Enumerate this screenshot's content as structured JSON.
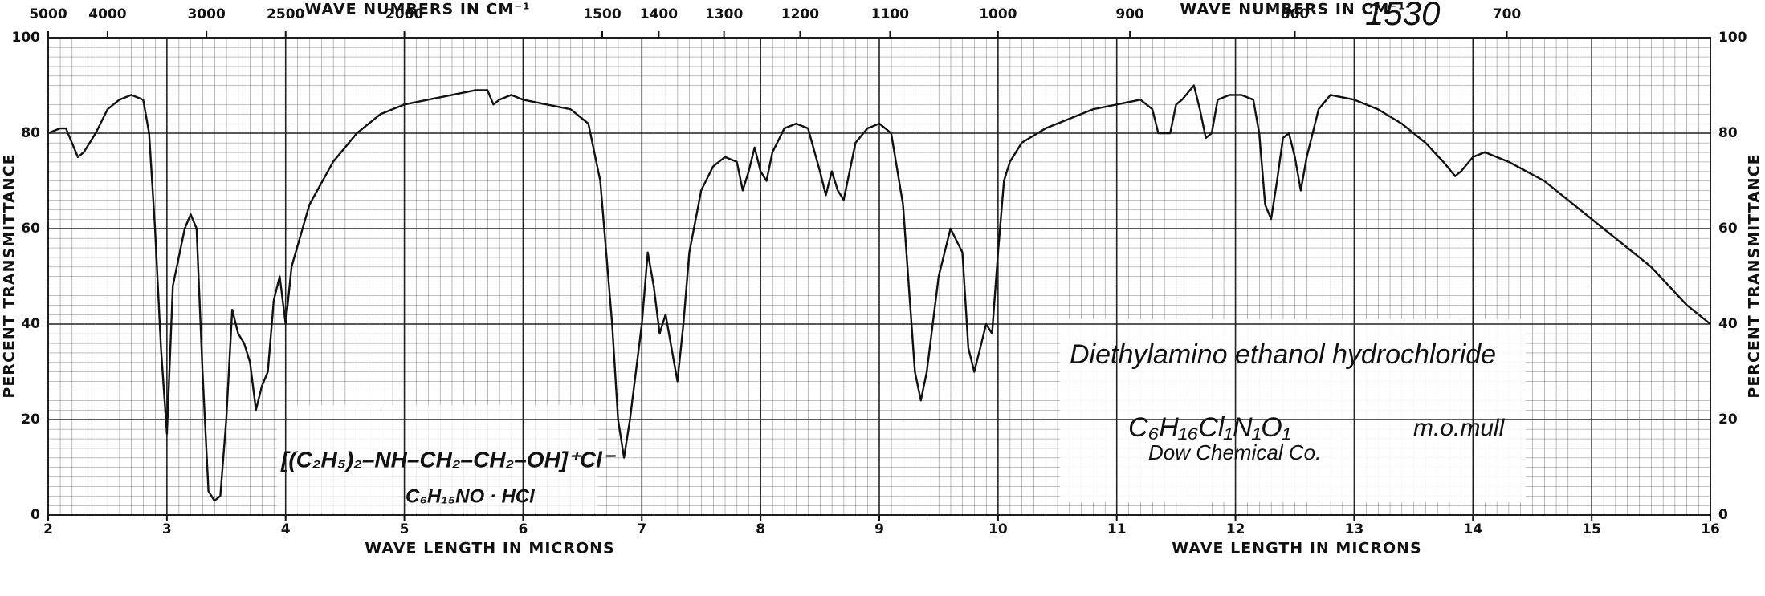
{
  "chart_data": {
    "type": "line",
    "x_label": "WAVE LENGTH IN MICRONS",
    "x2_label": "WAVE NUMBERS IN CM⁻¹",
    "y_label": "PERCENT TRANSMITTANCE",
    "xlim": [
      2,
      16
    ],
    "xticks": [
      2,
      3,
      4,
      5,
      6,
      7,
      8,
      9,
      10,
      11,
      12,
      13,
      14,
      15,
      16
    ],
    "x2_scale": "reciprocal",
    "x2ticks": [
      5000,
      4000,
      3000,
      2500,
      2000,
      1500,
      1400,
      1300,
      1200,
      1100,
      1000,
      900,
      800,
      700
    ],
    "ylim": [
      0,
      100
    ],
    "yticks": [
      0,
      20,
      40,
      60,
      80,
      100
    ],
    "grid": true,
    "color": "#111111",
    "x": [
      2.0,
      2.1,
      2.15,
      2.2,
      2.25,
      2.3,
      2.4,
      2.5,
      2.6,
      2.7,
      2.8,
      2.85,
      2.9,
      2.95,
      3.0,
      3.05,
      3.15,
      3.2,
      3.25,
      3.3,
      3.35,
      3.4,
      3.45,
      3.5,
      3.55,
      3.6,
      3.65,
      3.7,
      3.75,
      3.8,
      3.85,
      3.9,
      3.95,
      4.0,
      4.05,
      4.2,
      4.4,
      4.6,
      4.8,
      5.0,
      5.2,
      5.4,
      5.6,
      5.7,
      5.75,
      5.8,
      5.9,
      6.0,
      6.2,
      6.4,
      6.55,
      6.65,
      6.75,
      6.8,
      6.85,
      6.9,
      7.0,
      7.05,
      7.1,
      7.15,
      7.2,
      7.25,
      7.3,
      7.35,
      7.4,
      7.5,
      7.6,
      7.7,
      7.8,
      7.85,
      7.9,
      7.95,
      8.0,
      8.05,
      8.1,
      8.2,
      8.3,
      8.4,
      8.5,
      8.55,
      8.6,
      8.65,
      8.7,
      8.75,
      8.8,
      8.9,
      9.0,
      9.1,
      9.2,
      9.3,
      9.35,
      9.4,
      9.5,
      9.6,
      9.7,
      9.75,
      9.8,
      9.85,
      9.9,
      9.95,
      10.0,
      10.05,
      10.1,
      10.2,
      10.4,
      10.6,
      10.8,
      11.0,
      11.2,
      11.3,
      11.35,
      11.45,
      11.5,
      11.55,
      11.65,
      11.7,
      11.75,
      11.8,
      11.85,
      11.95,
      12.05,
      12.15,
      12.2,
      12.25,
      12.3,
      12.35,
      12.4,
      12.45,
      12.5,
      12.55,
      12.6,
      12.7,
      12.8,
      13.0,
      13.2,
      13.4,
      13.6,
      13.75,
      13.85,
      13.9,
      14.0,
      14.1,
      14.3,
      14.6,
      14.9,
      15.2,
      15.5,
      15.8,
      16.0
    ],
    "values": [
      80,
      81,
      81,
      78,
      75,
      76,
      80,
      85,
      87,
      88,
      87,
      80,
      60,
      35,
      17,
      48,
      60,
      63,
      60,
      30,
      5,
      3,
      4,
      20,
      43,
      38,
      36,
      32,
      22,
      27,
      30,
      45,
      50,
      40,
      52,
      65,
      74,
      80,
      84,
      86,
      87,
      88,
      89,
      89,
      86,
      87,
      88,
      87,
      86,
      85,
      82,
      70,
      40,
      20,
      12,
      20,
      40,
      55,
      48,
      38,
      42,
      35,
      28,
      40,
      55,
      68,
      73,
      75,
      74,
      68,
      72,
      77,
      72,
      70,
      76,
      81,
      82,
      81,
      72,
      67,
      72,
      68,
      66,
      72,
      78,
      81,
      82,
      80,
      65,
      30,
      24,
      30,
      50,
      60,
      55,
      35,
      30,
      35,
      40,
      38,
      55,
      70,
      74,
      78,
      81,
      83,
      85,
      86,
      87,
      85,
      80,
      80,
      86,
      87,
      90,
      85,
      79,
      80,
      87,
      88,
      88,
      87,
      80,
      65,
      62,
      70,
      79,
      80,
      75,
      68,
      75,
      85,
      88,
      87,
      85,
      82,
      78,
      74,
      71,
      72,
      75,
      76,
      74,
      70,
      64,
      58,
      52,
      44,
      40
    ],
    "annotations": [
      "1530",
      "Diethylamino ethanol hydrochloride",
      "C₆H₁₆Cl₁N₁O₁",
      "m.o.mull",
      "Dow Chemical Co.",
      "[(C₂H₅)₂–NH–CH₂–CH₂–OH]⁺Cl⁻",
      "C₆H₁₅NO · HCl"
    ]
  }
}
